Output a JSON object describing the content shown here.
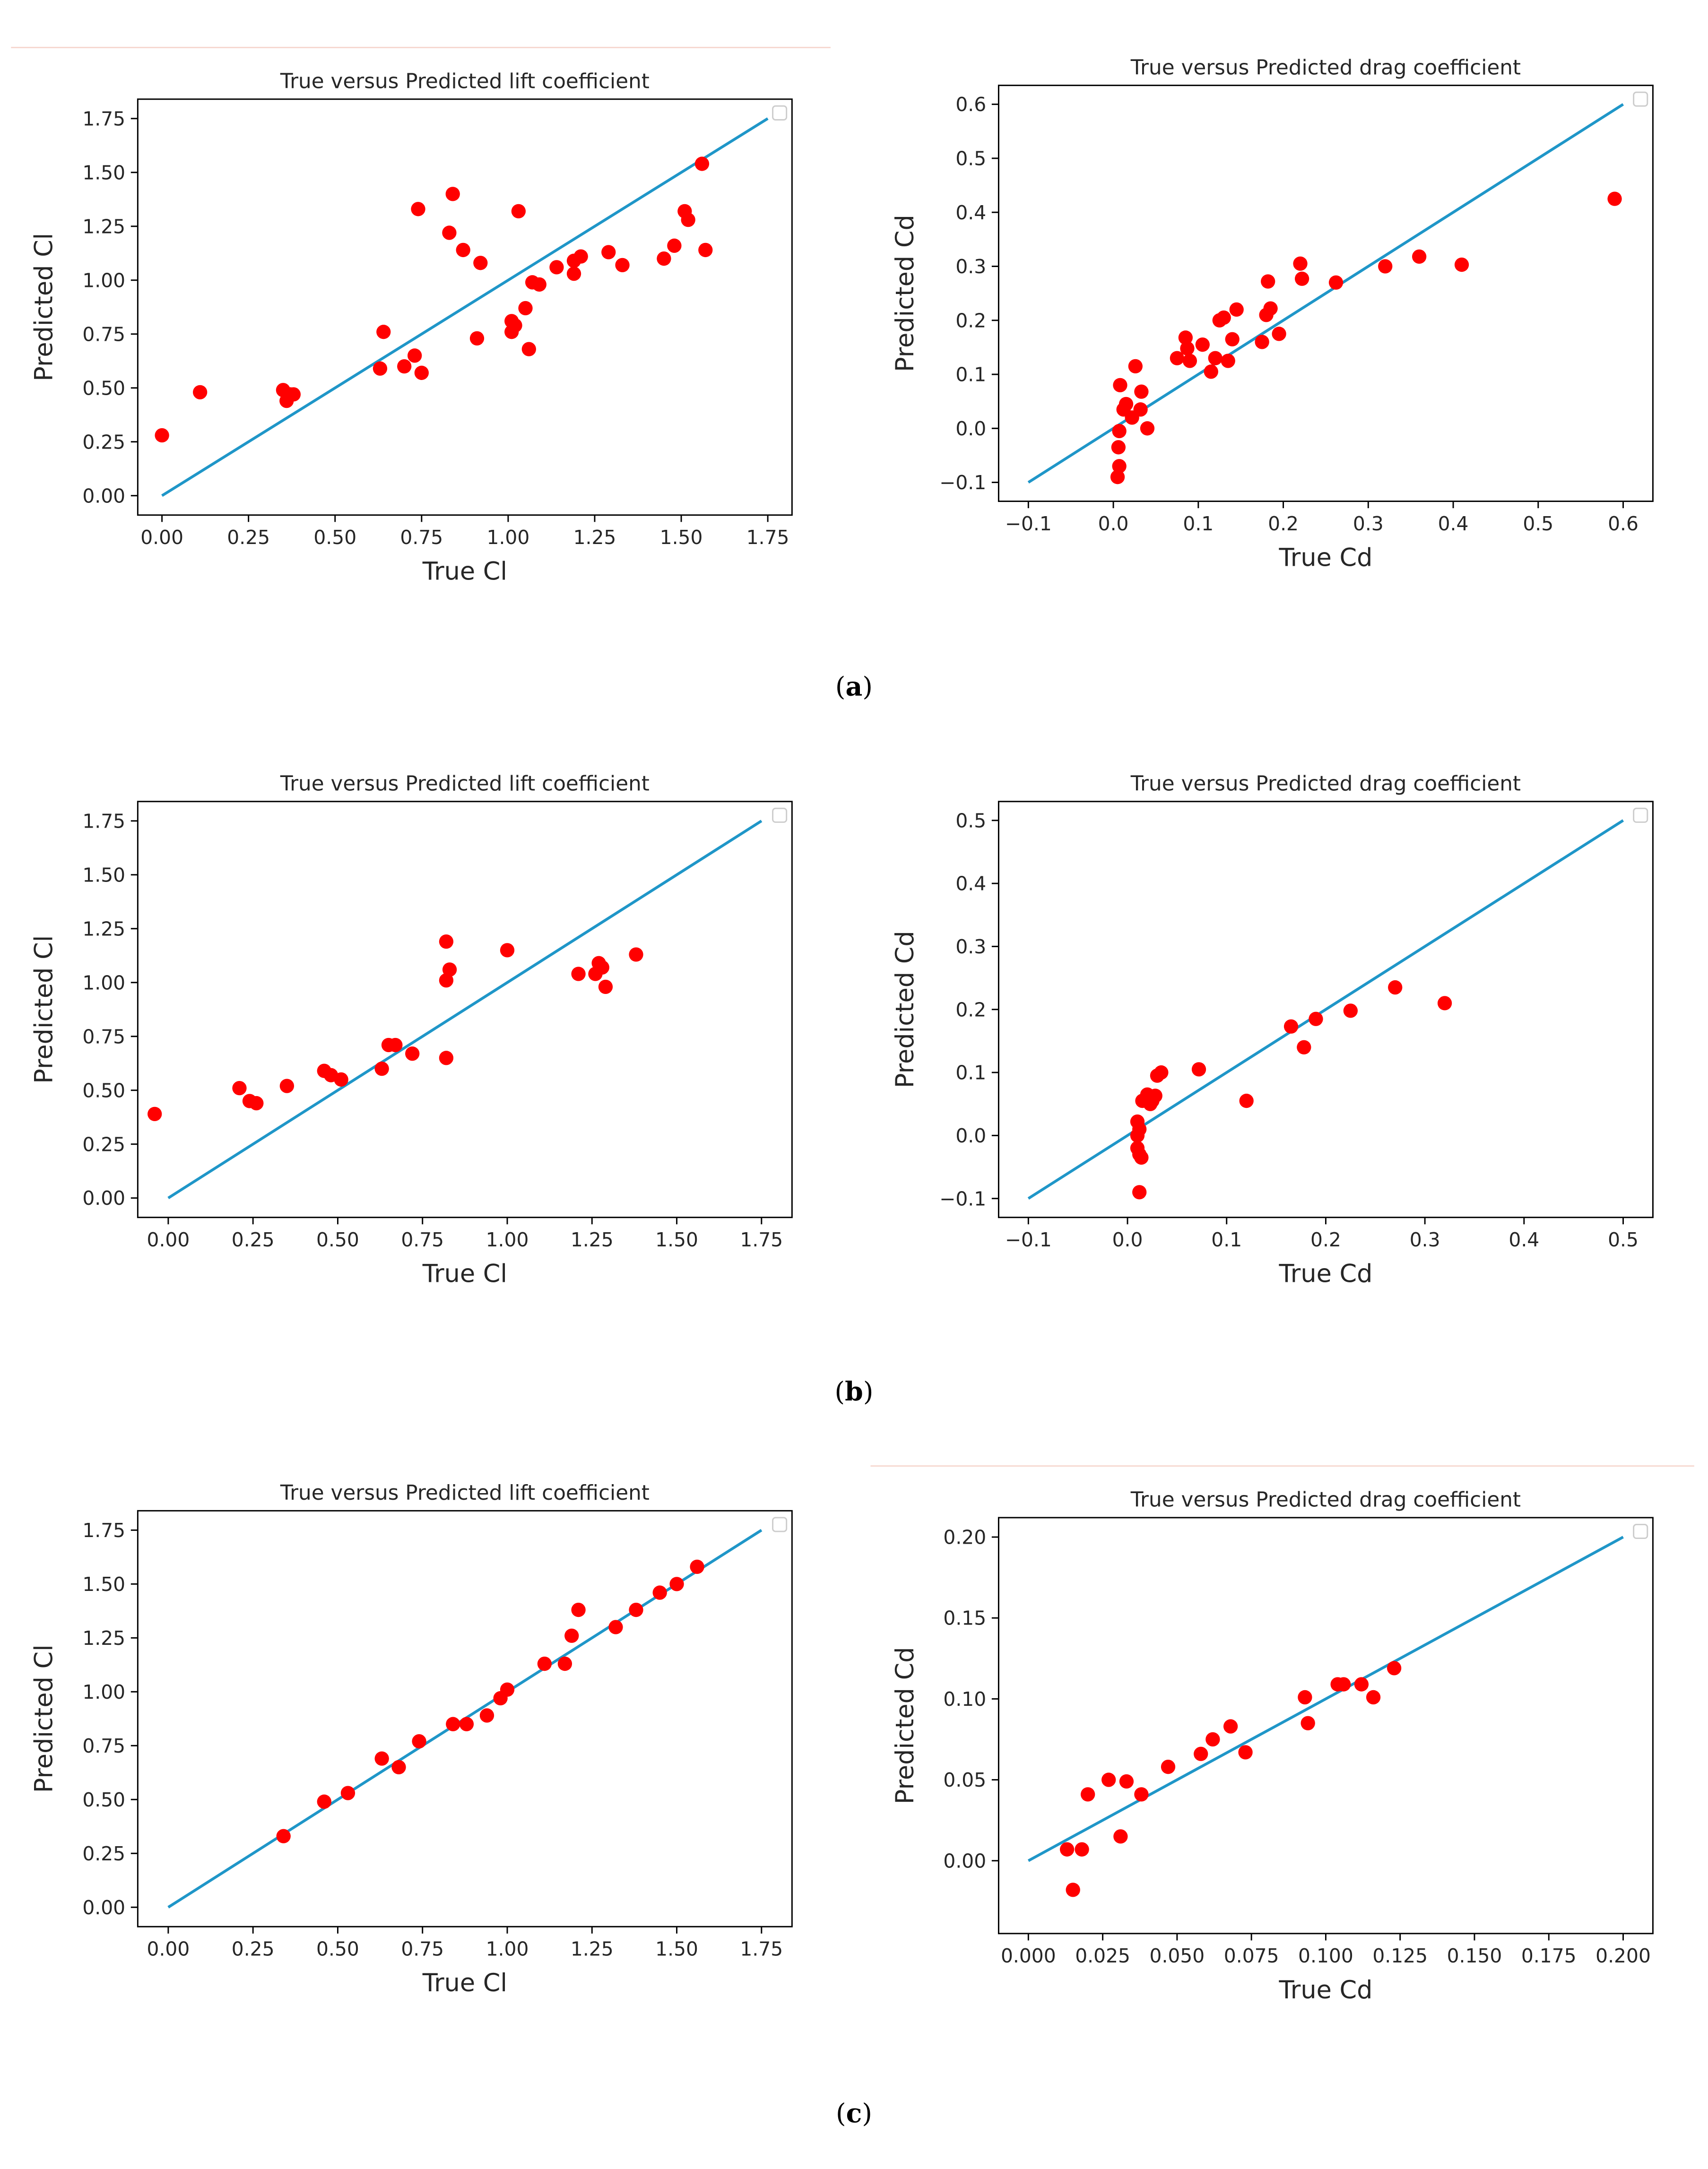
{
  "figure": {
    "labels": [
      {
        "letter": "a"
      },
      {
        "letter": "b"
      },
      {
        "letter": "c"
      }
    ]
  },
  "chart_data": [
    {
      "id": "a-lift",
      "type": "scatter",
      "title": "True versus Predicted lift coefficient",
      "xlabel": "True Cl",
      "ylabel": "Predicted Cl",
      "xlim": [
        -0.07,
        1.82
      ],
      "ylim": [
        -0.09,
        1.84
      ],
      "xticks": [
        "0.00",
        "0.25",
        "0.50",
        "0.75",
        "1.00",
        "1.25",
        "1.50",
        "1.75"
      ],
      "yticks": [
        "0.00",
        "0.25",
        "0.50",
        "0.75",
        "1.00",
        "1.25",
        "1.50",
        "1.75"
      ],
      "xtick_values": [
        0,
        0.25,
        0.5,
        0.75,
        1,
        1.25,
        1.5,
        1.75
      ],
      "ytick_values": [
        0,
        0.25,
        0.5,
        0.75,
        1,
        1.25,
        1.5,
        1.75
      ],
      "reference_line": {
        "from": [
          0,
          0
        ],
        "to": [
          1.75,
          1.75
        ],
        "color": "#1f96c8"
      },
      "point_color": "#ff0000",
      "legend": "upper right (empty)",
      "points": [
        [
          0.0,
          0.28
        ],
        [
          0.11,
          0.48
        ],
        [
          0.35,
          0.49
        ],
        [
          0.36,
          0.44
        ],
        [
          0.37,
          0.47
        ],
        [
          0.38,
          0.47
        ],
        [
          0.63,
          0.59
        ],
        [
          0.64,
          0.76
        ],
        [
          0.7,
          0.6
        ],
        [
          0.73,
          0.65
        ],
        [
          0.74,
          1.33
        ],
        [
          0.75,
          0.57
        ],
        [
          0.83,
          1.22
        ],
        [
          0.84,
          1.4
        ],
        [
          0.87,
          1.14
        ],
        [
          0.91,
          0.73
        ],
        [
          0.92,
          1.08
        ],
        [
          1.01,
          0.76
        ],
        [
          1.01,
          0.81
        ],
        [
          1.02,
          0.79
        ],
        [
          1.03,
          1.32
        ],
        [
          1.05,
          0.87
        ],
        [
          1.06,
          0.68
        ],
        [
          1.07,
          0.99
        ],
        [
          1.09,
          0.98
        ],
        [
          1.14,
          1.06
        ],
        [
          1.19,
          1.09
        ],
        [
          1.19,
          1.03
        ],
        [
          1.21,
          1.11
        ],
        [
          1.29,
          1.13
        ],
        [
          1.33,
          1.07
        ],
        [
          1.45,
          1.1
        ],
        [
          1.48,
          1.16
        ],
        [
          1.51,
          1.32
        ],
        [
          1.52,
          1.28
        ],
        [
          1.56,
          1.54
        ],
        [
          1.57,
          1.14
        ]
      ]
    },
    {
      "id": "a-drag",
      "type": "scatter",
      "title": "True versus Predicted drag coefficient",
      "xlabel": "True Cd",
      "ylabel": "Predicted Cd",
      "xlim": [
        -0.135,
        0.635
      ],
      "ylim": [
        -0.135,
        0.635
      ],
      "xticks": [
        "−0.1",
        "0.0",
        "0.1",
        "0.2",
        "0.3",
        "0.4",
        "0.5",
        "0.6"
      ],
      "yticks": [
        "−0.1",
        "0.0",
        "0.1",
        "0.2",
        "0.3",
        "0.4",
        "0.5",
        "0.6"
      ],
      "xtick_values": [
        -0.1,
        0,
        0.1,
        0.2,
        0.3,
        0.4,
        0.5,
        0.6
      ],
      "ytick_values": [
        -0.1,
        0,
        0.1,
        0.2,
        0.3,
        0.4,
        0.5,
        0.6
      ],
      "reference_line": {
        "from": [
          -0.1,
          -0.1
        ],
        "to": [
          0.6,
          0.6
        ],
        "color": "#1f96c8"
      },
      "point_color": "#ff0000",
      "legend": "upper right (empty)",
      "points": [
        [
          0.005,
          -0.09
        ],
        [
          0.007,
          -0.07
        ],
        [
          0.006,
          -0.035
        ],
        [
          0.007,
          -0.005
        ],
        [
          0.008,
          0.08
        ],
        [
          0.012,
          0.035
        ],
        [
          0.015,
          0.045
        ],
        [
          0.022,
          0.02
        ],
        [
          0.026,
          0.115
        ],
        [
          0.032,
          0.035
        ],
        [
          0.033,
          0.068
        ],
        [
          0.04,
          0.0
        ],
        [
          0.075,
          0.13
        ],
        [
          0.085,
          0.168
        ],
        [
          0.087,
          0.148
        ],
        [
          0.09,
          0.125
        ],
        [
          0.105,
          0.155
        ],
        [
          0.115,
          0.105
        ],
        [
          0.12,
          0.13
        ],
        [
          0.125,
          0.2
        ],
        [
          0.13,
          0.205
        ],
        [
          0.135,
          0.125
        ],
        [
          0.14,
          0.165
        ],
        [
          0.145,
          0.22
        ],
        [
          0.175,
          0.16
        ],
        [
          0.18,
          0.21
        ],
        [
          0.182,
          0.272
        ],
        [
          0.185,
          0.222
        ],
        [
          0.195,
          0.175
        ],
        [
          0.22,
          0.305
        ],
        [
          0.222,
          0.277
        ],
        [
          0.262,
          0.27
        ],
        [
          0.32,
          0.3
        ],
        [
          0.36,
          0.318
        ],
        [
          0.41,
          0.303
        ],
        [
          0.59,
          0.425
        ]
      ]
    },
    {
      "id": "b-lift",
      "type": "scatter",
      "title": "True versus Predicted lift coefficient",
      "xlabel": "True Cl",
      "ylabel": "Predicted Cl",
      "xlim": [
        -0.09,
        1.84
      ],
      "ylim": [
        -0.09,
        1.84
      ],
      "xticks": [
        "0.00",
        "0.25",
        "0.50",
        "0.75",
        "1.00",
        "1.25",
        "1.50",
        "1.75"
      ],
      "yticks": [
        "0.00",
        "0.25",
        "0.50",
        "0.75",
        "1.00",
        "1.25",
        "1.50",
        "1.75"
      ],
      "xtick_values": [
        0,
        0.25,
        0.5,
        0.75,
        1,
        1.25,
        1.5,
        1.75
      ],
      "ytick_values": [
        0,
        0.25,
        0.5,
        0.75,
        1,
        1.25,
        1.5,
        1.75
      ],
      "reference_line": {
        "from": [
          0,
          0
        ],
        "to": [
          1.75,
          1.75
        ],
        "color": "#1f96c8"
      },
      "point_color": "#ff0000",
      "legend": "upper right (empty)",
      "points": [
        [
          -0.04,
          0.39
        ],
        [
          0.21,
          0.51
        ],
        [
          0.24,
          0.45
        ],
        [
          0.26,
          0.44
        ],
        [
          0.35,
          0.52
        ],
        [
          0.46,
          0.59
        ],
        [
          0.48,
          0.57
        ],
        [
          0.51,
          0.55
        ],
        [
          0.63,
          0.6
        ],
        [
          0.65,
          0.71
        ],
        [
          0.67,
          0.71
        ],
        [
          0.72,
          0.67
        ],
        [
          0.82,
          1.19
        ],
        [
          0.82,
          1.01
        ],
        [
          0.83,
          1.06
        ],
        [
          0.82,
          0.65
        ],
        [
          1.0,
          1.15
        ],
        [
          1.21,
          1.04
        ],
        [
          1.26,
          1.04
        ],
        [
          1.27,
          1.09
        ],
        [
          1.28,
          1.07
        ],
        [
          1.29,
          0.98
        ],
        [
          1.38,
          1.13
        ]
      ]
    },
    {
      "id": "b-drag",
      "type": "scatter",
      "title": "True versus Predicted drag coefficient",
      "xlabel": "True Cd",
      "ylabel": "Predicted Cd",
      "xlim": [
        -0.13,
        0.53
      ],
      "ylim": [
        -0.13,
        0.53
      ],
      "xticks": [
        "−0.1",
        "0.0",
        "0.1",
        "0.2",
        "0.3",
        "0.4",
        "0.5"
      ],
      "yticks": [
        "−0.1",
        "0.0",
        "0.1",
        "0.2",
        "0.3",
        "0.4",
        "0.5"
      ],
      "xtick_values": [
        -0.1,
        0,
        0.1,
        0.2,
        0.3,
        0.4,
        0.5
      ],
      "ytick_values": [
        -0.1,
        0,
        0.1,
        0.2,
        0.3,
        0.4,
        0.5
      ],
      "reference_line": {
        "from": [
          -0.1,
          -0.1
        ],
        "to": [
          0.5,
          0.5
        ],
        "color": "#1f96c8"
      },
      "point_color": "#ff0000",
      "legend": "upper right (empty)",
      "points": [
        [
          0.012,
          -0.09
        ],
        [
          0.01,
          -0.02
        ],
        [
          0.012,
          -0.03
        ],
        [
          0.014,
          -0.035
        ],
        [
          0.01,
          0.0
        ],
        [
          0.012,
          0.01
        ],
        [
          0.01,
          0.022
        ],
        [
          0.015,
          0.055
        ],
        [
          0.02,
          0.065
        ],
        [
          0.023,
          0.05
        ],
        [
          0.025,
          0.055
        ],
        [
          0.028,
          0.063
        ],
        [
          0.03,
          0.095
        ],
        [
          0.034,
          0.1
        ],
        [
          0.072,
          0.105
        ],
        [
          0.12,
          0.055
        ],
        [
          0.165,
          0.173
        ],
        [
          0.178,
          0.14
        ],
        [
          0.19,
          0.185
        ],
        [
          0.225,
          0.198
        ],
        [
          0.27,
          0.235
        ],
        [
          0.32,
          0.21
        ]
      ]
    },
    {
      "id": "c-lift",
      "type": "scatter",
      "title": "True versus Predicted lift coefficient",
      "xlabel": "True Cl",
      "ylabel": "Predicted Cl",
      "xlim": [
        -0.09,
        1.84
      ],
      "ylim": [
        -0.09,
        1.84
      ],
      "xticks": [
        "0.00",
        "0.25",
        "0.50",
        "0.75",
        "1.00",
        "1.25",
        "1.50",
        "1.75"
      ],
      "yticks": [
        "0.00",
        "0.25",
        "0.50",
        "0.75",
        "1.00",
        "1.25",
        "1.50",
        "1.75"
      ],
      "xtick_values": [
        0,
        0.25,
        0.5,
        0.75,
        1,
        1.25,
        1.5,
        1.75
      ],
      "ytick_values": [
        0,
        0.25,
        0.5,
        0.75,
        1,
        1.25,
        1.5,
        1.75
      ],
      "reference_line": {
        "from": [
          0,
          0
        ],
        "to": [
          1.75,
          1.75
        ],
        "color": "#1f96c8"
      },
      "point_color": "#ff0000",
      "legend": "upper right (empty)",
      "points": [
        [
          0.34,
          0.33
        ],
        [
          0.46,
          0.49
        ],
        [
          0.53,
          0.53
        ],
        [
          0.63,
          0.69
        ],
        [
          0.68,
          0.65
        ],
        [
          0.74,
          0.77
        ],
        [
          0.84,
          0.85
        ],
        [
          0.88,
          0.85
        ],
        [
          0.94,
          0.89
        ],
        [
          0.98,
          0.97
        ],
        [
          1.0,
          1.01
        ],
        [
          1.11,
          1.13
        ],
        [
          1.17,
          1.13
        ],
        [
          1.19,
          1.26
        ],
        [
          1.21,
          1.38
        ],
        [
          1.32,
          1.3
        ],
        [
          1.38,
          1.38
        ],
        [
          1.45,
          1.46
        ],
        [
          1.5,
          1.5
        ],
        [
          1.56,
          1.58
        ]
      ]
    },
    {
      "id": "c-drag",
      "type": "scatter",
      "title": "True versus Predicted drag coefficient",
      "xlabel": "True Cd",
      "ylabel": "Predicted Cd",
      "xlim": [
        -0.01,
        0.21
      ],
      "ylim": [
        -0.045,
        0.212
      ],
      "xticks": [
        "0.000",
        "0.025",
        "0.050",
        "0.075",
        "0.100",
        "0.125",
        "0.150",
        "0.175",
        "0.200"
      ],
      "yticks": [
        "0.00",
        "0.05",
        "0.10",
        "0.15",
        "0.20"
      ],
      "xtick_values": [
        0,
        0.025,
        0.05,
        0.075,
        0.1,
        0.125,
        0.15,
        0.175,
        0.2
      ],
      "ytick_values": [
        0,
        0.05,
        0.1,
        0.15,
        0.2
      ],
      "reference_line": {
        "from": [
          0,
          0
        ],
        "to": [
          0.2,
          0.2
        ],
        "color": "#1f96c8"
      },
      "point_color": "#ff0000",
      "legend": "upper right (empty)",
      "points": [
        [
          0.013,
          0.007
        ],
        [
          0.015,
          -0.018
        ],
        [
          0.018,
          0.007
        ],
        [
          0.02,
          0.041
        ],
        [
          0.027,
          0.05
        ],
        [
          0.031,
          0.015
        ],
        [
          0.033,
          0.049
        ],
        [
          0.038,
          0.041
        ],
        [
          0.047,
          0.058
        ],
        [
          0.058,
          0.066
        ],
        [
          0.062,
          0.075
        ],
        [
          0.068,
          0.083
        ],
        [
          0.073,
          0.067
        ],
        [
          0.093,
          0.101
        ],
        [
          0.094,
          0.085
        ],
        [
          0.104,
          0.109
        ],
        [
          0.106,
          0.109
        ],
        [
          0.112,
          0.109
        ],
        [
          0.116,
          0.101
        ],
        [
          0.123,
          0.119
        ]
      ]
    }
  ]
}
